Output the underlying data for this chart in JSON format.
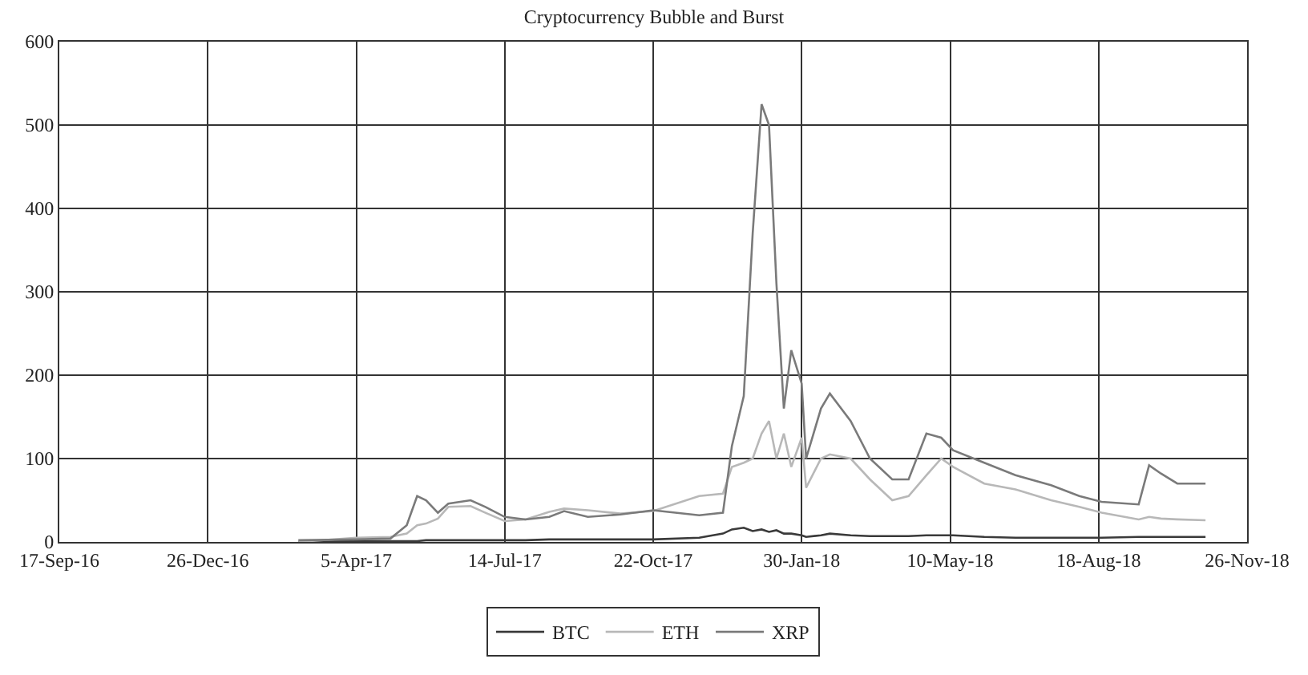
{
  "chart_data": {
    "type": "line",
    "title": "Cryptocurrency Bubble and Burst",
    "x": [
      "2017-02-25",
      "2017-04-05",
      "2017-04-28",
      "2017-05-09",
      "2017-05-16",
      "2017-05-22",
      "2017-05-30",
      "2017-06-06",
      "2017-06-21",
      "2017-07-01",
      "2017-07-14",
      "2017-07-28",
      "2017-08-13",
      "2017-08-23",
      "2017-09-08",
      "2017-09-30",
      "2017-10-22",
      "2017-11-22",
      "2017-12-08",
      "2017-12-14",
      "2017-12-22",
      "2017-12-28",
      "2018-01-03",
      "2018-01-08",
      "2018-01-13",
      "2018-01-18",
      "2018-01-23",
      "2018-01-30",
      "2018-02-02",
      "2018-02-12",
      "2018-02-18",
      "2018-03-04",
      "2018-03-17",
      "2018-04-01",
      "2018-04-12",
      "2018-04-24",
      "2018-05-04",
      "2018-05-12",
      "2018-06-02",
      "2018-06-23",
      "2018-07-17",
      "2018-08-05",
      "2018-08-20",
      "2018-09-14",
      "2018-09-21",
      "2018-09-29",
      "2018-10-10",
      "2018-10-29"
    ],
    "series": [
      {
        "name": "BTC",
        "color": "#3a3a3a",
        "values": [
          0,
          1,
          1,
          1,
          1,
          2,
          2,
          2,
          2,
          2,
          2,
          2,
          3,
          3,
          3,
          3,
          3,
          5,
          10,
          15,
          17,
          13,
          15,
          12,
          14,
          10,
          10,
          8,
          6,
          8,
          10,
          8,
          7,
          7,
          7,
          8,
          8,
          8,
          6,
          5,
          5,
          5,
          5,
          6,
          6,
          6,
          6,
          6
        ]
      },
      {
        "name": "ETH",
        "color": "#b8b8b8",
        "values": [
          0,
          5,
          6,
          10,
          20,
          22,
          28,
          42,
          43,
          35,
          25,
          27,
          36,
          40,
          38,
          34,
          37,
          55,
          58,
          90,
          95,
          100,
          130,
          145,
          100,
          130,
          90,
          125,
          65,
          100,
          105,
          100,
          75,
          50,
          55,
          80,
          100,
          90,
          70,
          63,
          50,
          42,
          35,
          27,
          30,
          28,
          27,
          26
        ]
      },
      {
        "name": "XRP",
        "color": "#7a7a7a",
        "values": [
          2,
          3,
          4,
          20,
          55,
          50,
          35,
          46,
          50,
          42,
          30,
          27,
          30,
          37,
          30,
          33,
          38,
          32,
          35,
          115,
          175,
          370,
          525,
          500,
          310,
          160,
          230,
          190,
          100,
          160,
          178,
          145,
          100,
          75,
          75,
          130,
          125,
          110,
          95,
          80,
          68,
          55,
          48,
          45,
          92,
          82,
          70,
          70
        ]
      }
    ],
    "xlim": [
      "2016-09-17",
      "2018-11-26"
    ],
    "xticks": [
      {
        "value": "2016-09-17",
        "label": "17-Sep-16"
      },
      {
        "value": "2016-12-26",
        "label": "26-Dec-16"
      },
      {
        "value": "2017-04-05",
        "label": "5-Apr-17"
      },
      {
        "value": "2017-07-14",
        "label": "14-Jul-17"
      },
      {
        "value": "2017-10-22",
        "label": "22-Oct-17"
      },
      {
        "value": "2018-01-30",
        "label": "30-Jan-18"
      },
      {
        "value": "2018-05-10",
        "label": "10-May-18"
      },
      {
        "value": "2018-08-18",
        "label": "18-Aug-18"
      },
      {
        "value": "2018-11-26",
        "label": "26-Nov-18"
      }
    ],
    "ylim": [
      0,
      600
    ],
    "yticks": [
      0,
      100,
      200,
      300,
      400,
      500,
      600
    ],
    "grid": true,
    "legend": "bottom",
    "line_style": "solid"
  }
}
